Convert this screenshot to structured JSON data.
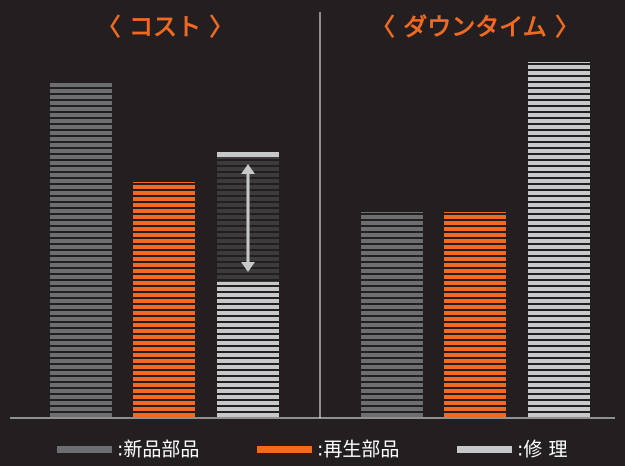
{
  "legend": [
    {
      "name": ":新品部品",
      "color": "#6d6e71"
    },
    {
      "name": ":再生部品",
      "color": "#f26a21"
    },
    {
      "name": ":修 理",
      "color": "#c7c8ca"
    }
  ],
  "chart_data": [
    {
      "type": "bar",
      "title": "〈 コスト 〉",
      "values": [
        335,
        235,
        135
      ],
      "previous_values": [
        null,
        null,
        265
      ],
      "ylim": [
        0,
        370
      ]
    },
    {
      "type": "bar",
      "title": "〈 ダウンタイム 〉",
      "values": [
        205,
        205,
        355
      ],
      "ylim": [
        0,
        370
      ]
    }
  ]
}
